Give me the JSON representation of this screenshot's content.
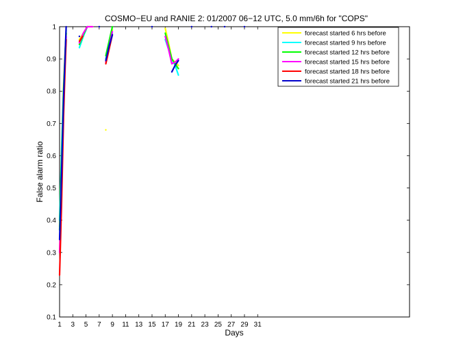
{
  "chart_data": {
    "type": "line",
    "title": "COSMO−EU and RANIE 2: 01/2007 06−12 UTC, 5.0 mm/6h for \"COPS\"",
    "xlabel": "Days",
    "ylabel": "False alarm ratio",
    "xlim": [
      1,
      54
    ],
    "ylim": [
      0.1,
      1.0
    ],
    "x_ticks": [
      1,
      3,
      5,
      7,
      9,
      11,
      13,
      15,
      17,
      19,
      21,
      23,
      25,
      27,
      29,
      31
    ],
    "x_tick_labels": [
      "1",
      "3",
      "5",
      "7",
      "9",
      "11",
      "13",
      "15",
      "17",
      "19",
      "21",
      "23",
      "25",
      "27",
      "29",
      "31"
    ],
    "y_ticks": [
      0.1,
      0.2,
      0.3,
      0.4,
      0.5,
      0.6,
      0.7,
      0.8,
      0.9,
      1.0
    ],
    "y_tick_labels": [
      "0.1",
      "0.2",
      "0.3",
      "0.4",
      "0.5",
      "0.6",
      "0.7",
      "0.8",
      "0.9",
      "1"
    ],
    "legend_position": "top-right",
    "grid": false,
    "series": [
      {
        "name": "forecast started 6 hrs before",
        "color": "#ffff00",
        "segments": [
          [
            [
              1,
              0.38
            ],
            [
              1.3,
              0.6
            ],
            [
              1.6,
              0.82
            ],
            [
              1.85,
              0.93
            ],
            [
              2.0,
              0.98
            ]
          ],
          [
            [
              4.0,
              0.96
            ],
            [
              4.6,
              0.98
            ],
            [
              5.2,
              1.0
            ],
            [
              6.0,
              1.0
            ]
          ],
          [
            [
              8.0,
              0.89
            ],
            [
              8.5,
              0.94
            ],
            [
              9.0,
              0.99
            ]
          ],
          [
            [
              17.0,
              0.995
            ],
            [
              17.5,
              0.95
            ],
            [
              18.0,
              0.9
            ],
            [
              18.5,
              0.89
            ],
            [
              19.0,
              0.88
            ]
          ]
        ],
        "points": [
          [
            8.0,
            0.68
          ]
        ]
      },
      {
        "name": "forecast started 9 hrs before",
        "color": "#00ffff",
        "segments": [
          [
            [
              1,
              0.4
            ],
            [
              1.3,
              0.62
            ],
            [
              1.6,
              0.8
            ],
            [
              1.85,
              0.92
            ],
            [
              2.0,
              0.99
            ]
          ],
          [
            [
              4.0,
              0.935
            ],
            [
              4.6,
              0.97
            ],
            [
              5.2,
              1.0
            ]
          ],
          [
            [
              8.0,
              0.9
            ],
            [
              8.5,
              0.945
            ],
            [
              9.0,
              0.98
            ]
          ],
          [
            [
              17.0,
              0.96
            ],
            [
              17.5,
              0.93
            ],
            [
              18.0,
              0.9
            ],
            [
              18.5,
              0.88
            ],
            [
              19.0,
              0.85
            ]
          ]
        ],
        "points": []
      },
      {
        "name": "forecast started 12 hrs before",
        "color": "#00ff00",
        "segments": [
          [
            [
              1,
              0.37
            ],
            [
              1.3,
              0.58
            ],
            [
              1.6,
              0.8
            ],
            [
              1.85,
              0.92
            ],
            [
              2.0,
              0.98
            ]
          ],
          [
            [
              4.0,
              0.945
            ],
            [
              4.6,
              0.975
            ],
            [
              5.2,
              1.0
            ]
          ],
          [
            [
              8.0,
              0.91
            ],
            [
              8.5,
              0.955
            ],
            [
              9.0,
              1.0
            ]
          ],
          [
            [
              17.0,
              0.98
            ],
            [
              17.5,
              0.94
            ],
            [
              18.0,
              0.9
            ],
            [
              18.5,
              0.885
            ],
            [
              19.0,
              0.87
            ]
          ]
        ],
        "points": []
      },
      {
        "name": "forecast started 15 hrs before",
        "color": "#ff00ff",
        "segments": [
          [
            [
              1,
              0.3
            ],
            [
              1.3,
              0.52
            ],
            [
              1.6,
              0.76
            ],
            [
              1.85,
              0.9
            ],
            [
              2.0,
              0.97
            ]
          ],
          [
            [
              4.0,
              0.95
            ],
            [
              4.6,
              0.98
            ],
            [
              5.2,
              1.0
            ],
            [
              6.0,
              1.0
            ]
          ],
          [
            [
              8.0,
              0.89
            ],
            [
              8.5,
              0.94
            ],
            [
              9.0,
              0.985
            ]
          ],
          [
            [
              17.0,
              0.97
            ],
            [
              17.5,
              0.93
            ],
            [
              18.0,
              0.885
            ],
            [
              18.5,
              0.89
            ],
            [
              19.0,
              0.9
            ]
          ]
        ],
        "points": []
      },
      {
        "name": "forecast started 18 hrs before",
        "color": "#ff0000",
        "segments": [
          [
            [
              1,
              0.23
            ],
            [
              1.3,
              0.45
            ],
            [
              1.6,
              0.72
            ],
            [
              1.85,
              0.88
            ],
            [
              2.0,
              0.96
            ]
          ],
          [
            [
              4.0,
              0.955
            ],
            [
              4.5,
              0.97
            ]
          ],
          [
            [
              8.0,
              0.885
            ],
            [
              8.5,
              0.93
            ],
            [
              9.0,
              0.975
            ]
          ]
        ],
        "points": []
      },
      {
        "name": "forecast started 21 hrs before",
        "color": "#0000cc",
        "segments": [
          [
            [
              1,
              0.34
            ],
            [
              1.3,
              0.55
            ],
            [
              1.6,
              0.78
            ],
            [
              1.85,
              0.92
            ],
            [
              2.0,
              1.0
            ]
          ],
          [
            [
              8.0,
              0.895
            ],
            [
              8.5,
              0.94
            ],
            [
              9.0,
              0.975
            ]
          ],
          [
            [
              18.0,
              0.86
            ],
            [
              18.5,
              0.88
            ],
            [
              19.0,
              0.895
            ]
          ]
        ],
        "points": [
          [
            4.0,
            0.97
          ],
          [
            7.0,
            1.0
          ],
          [
            15.0,
            1.0
          ],
          [
            21.0,
            1.0
          ],
          [
            24.0,
            1.0
          ],
          [
            26.0,
            1.0
          ],
          [
            29.0,
            1.0
          ]
        ]
      }
    ]
  }
}
